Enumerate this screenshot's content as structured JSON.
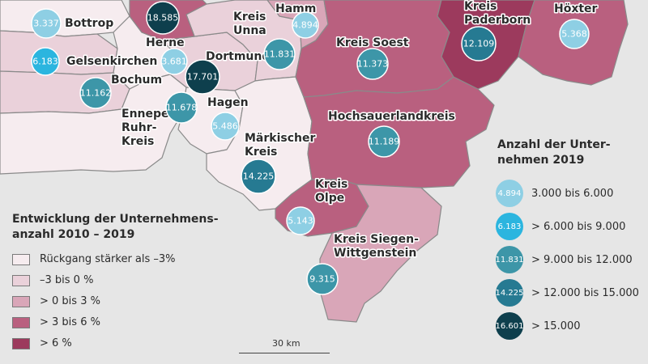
{
  "districts": {
    "bottrop": "Bottrop",
    "gelsenkirchen": "Gelsenkirchen",
    "bochum": "Bochum",
    "herne": "Herne",
    "dortmund": "Dortmund",
    "kreis_unna": "Kreis\nUnna",
    "hamm": "Hamm",
    "ennepe_ruhr": "Ennepe-\nRuhr-\nKreis",
    "hagen": "Hagen",
    "maerkischer_kreis": "Märkischer\nKreis",
    "kreis_soest": "Kreis Soest",
    "hochsauerlandkreis": "Hochsauerlandkreis",
    "kreis_olpe": "Kreis\nOlpe",
    "kreis_siegen": "Kreis Siegen-\nWittgenstein",
    "kreis_paderborn": "Kreis\nPaderborn",
    "hoexter": "Höxter"
  },
  "bubbles": [
    {
      "id": "bottrop",
      "value": "3.337",
      "color": "#8ecfe4"
    },
    {
      "id": "gelsenkirchen",
      "value": "6.183",
      "color": "#2bb5df"
    },
    {
      "id": "bochum",
      "value": "11.162",
      "color": "#3d96a8"
    },
    {
      "id": "herne",
      "value": "3.681",
      "color": "#8ecfe4"
    },
    {
      "id": "dortmund_top",
      "value": "18.585",
      "color": "#0e3f4d"
    },
    {
      "id": "dortmund",
      "value": "17.701",
      "color": "#0e3f4d"
    },
    {
      "id": "kreis_unna",
      "value": "11.831",
      "color": "#3d96a8"
    },
    {
      "id": "hamm",
      "value": "4.894",
      "color": "#8ecfe4"
    },
    {
      "id": "ennepe_ruhr",
      "value": "11.678",
      "color": "#3d96a8"
    },
    {
      "id": "hagen",
      "value": "5.486",
      "color": "#8ecfe4"
    },
    {
      "id": "maerkischer_kreis",
      "value": "14.225",
      "color": "#267a92"
    },
    {
      "id": "kreis_soest",
      "value": "11.373",
      "color": "#3d96a8"
    },
    {
      "id": "hochsauerlandkreis",
      "value": "11.189",
      "color": "#3d96a8"
    },
    {
      "id": "kreis_olpe",
      "value": "5.143",
      "color": "#8ecfe4"
    },
    {
      "id": "kreis_siegen",
      "value": "9.315",
      "color": "#3d96a8"
    },
    {
      "id": "kreis_paderborn",
      "value": "12.109",
      "color": "#267a92"
    },
    {
      "id": "hoexter",
      "value": "5.368",
      "color": "#8ecfe4"
    }
  ],
  "legend_change": {
    "title": "Entwicklung der Unternehmens-\nanzahl 2010 – 2019",
    "items": [
      {
        "label": "Rückgang stärker als –3%",
        "color": "#f6ecef"
      },
      {
        "label": "–3 bis 0 %",
        "color": "#ead1da"
      },
      {
        "label": "> 0 bis 3 %",
        "color": "#d9a6b8"
      },
      {
        "label": "> 3 bis 6 %",
        "color": "#b9607f"
      },
      {
        "label": "> 6 %",
        "color": "#9c3a5d"
      }
    ]
  },
  "legend_count": {
    "title": "Anzahl der Unter-\nnehmen 2019",
    "items": [
      {
        "value": "4.894",
        "label": "3.000 bis 6.000",
        "color": "#8ecfe4"
      },
      {
        "value": "6.183",
        "label": "> 6.000 bis 9.000",
        "color": "#2bb5df"
      },
      {
        "value": "11.831",
        "label": "> 9.000 bis 12.000",
        "color": "#3d96a8"
      },
      {
        "value": "14.225",
        "label": "> 12.000 bis 15.000",
        "color": "#267a92"
      },
      {
        "value": "16.601",
        "label": "> 15.000",
        "color": "#0e3f4d"
      }
    ]
  },
  "scale": {
    "label": "30 km"
  }
}
